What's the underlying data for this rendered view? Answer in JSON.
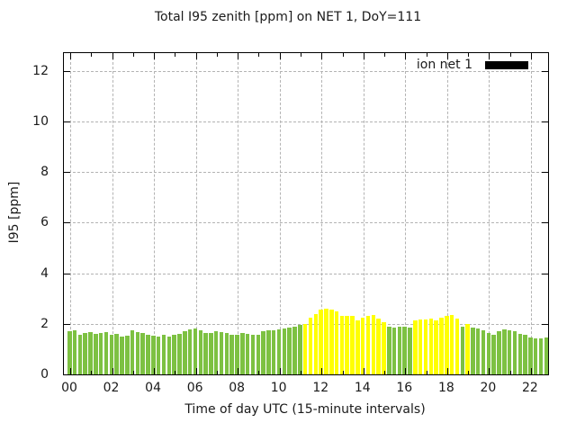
{
  "chart_data": {
    "type": "bar",
    "title": "Total I95 zenith [ppm] on NET 1, DoY=111",
    "xlabel": "Time of day UTC (15-minute intervals)",
    "ylabel": "I95 [ppm]",
    "ylim": [
      0,
      12.7
    ],
    "yticks": [
      0,
      2,
      4,
      6,
      8,
      10,
      12
    ],
    "xtick_labels": [
      "00",
      "02",
      "04",
      "06",
      "08",
      "10",
      "12",
      "14",
      "16",
      "18",
      "20",
      "22"
    ],
    "grid": true,
    "legend_position": "top-right-inside",
    "legend": [
      {
        "name": "ion net 1",
        "swatch": "#000000"
      }
    ],
    "palette": {
      "g": "#7dc142",
      "y": "#ffff00"
    },
    "x": [
      "00:00",
      "00:15",
      "00:30",
      "00:45",
      "01:00",
      "01:15",
      "01:30",
      "01:45",
      "02:00",
      "02:15",
      "02:30",
      "02:45",
      "03:00",
      "03:15",
      "03:30",
      "03:45",
      "04:00",
      "04:15",
      "04:30",
      "04:45",
      "05:00",
      "05:15",
      "05:30",
      "05:45",
      "06:00",
      "06:15",
      "06:30",
      "06:45",
      "07:00",
      "07:15",
      "07:30",
      "07:45",
      "08:00",
      "08:15",
      "08:30",
      "08:45",
      "09:00",
      "09:15",
      "09:30",
      "09:45",
      "10:00",
      "10:15",
      "10:30",
      "10:45",
      "11:00",
      "11:15",
      "11:30",
      "11:45",
      "12:00",
      "12:15",
      "12:30",
      "12:45",
      "13:00",
      "13:15",
      "13:30",
      "13:45",
      "14:00",
      "14:15",
      "14:30",
      "14:45",
      "15:00",
      "15:15",
      "15:30",
      "15:45",
      "16:00",
      "16:15",
      "16:30",
      "16:45",
      "17:00",
      "17:15",
      "17:30",
      "17:45",
      "18:00",
      "18:15",
      "18:30",
      "18:45",
      "19:00",
      "19:15",
      "19:30",
      "19:45",
      "20:00",
      "20:15",
      "20:30",
      "20:45",
      "21:00",
      "21:15",
      "21:30",
      "21:45",
      "22:00",
      "22:15",
      "22:30",
      "22:45"
    ],
    "values": [
      1.7,
      1.75,
      1.58,
      1.63,
      1.68,
      1.61,
      1.65,
      1.68,
      1.56,
      1.61,
      1.51,
      1.54,
      1.73,
      1.68,
      1.63,
      1.58,
      1.54,
      1.49,
      1.56,
      1.51,
      1.56,
      1.61,
      1.7,
      1.77,
      1.8,
      1.75,
      1.63,
      1.65,
      1.7,
      1.68,
      1.65,
      1.55,
      1.58,
      1.63,
      1.61,
      1.58,
      1.56,
      1.7,
      1.75,
      1.75,
      1.77,
      1.8,
      1.85,
      1.87,
      1.94,
      2.0,
      2.25,
      2.4,
      2.55,
      2.6,
      2.55,
      2.5,
      2.3,
      2.33,
      2.3,
      2.15,
      2.25,
      2.3,
      2.35,
      2.2,
      2.05,
      1.88,
      1.85,
      1.87,
      1.9,
      1.85,
      2.15,
      2.17,
      2.18,
      2.2,
      2.15,
      2.25,
      2.3,
      2.35,
      2.2,
      1.9,
      2.0,
      1.85,
      1.8,
      1.73,
      1.63,
      1.58,
      1.72,
      1.78,
      1.75,
      1.72,
      1.6,
      1.55,
      1.46,
      1.43,
      1.43,
      1.45
    ],
    "bar_colors": [
      "g",
      "g",
      "g",
      "g",
      "g",
      "g",
      "g",
      "g",
      "g",
      "g",
      "g",
      "g",
      "g",
      "g",
      "g",
      "g",
      "g",
      "g",
      "g",
      "g",
      "g",
      "g",
      "g",
      "g",
      "g",
      "g",
      "g",
      "g",
      "g",
      "g",
      "g",
      "g",
      "g",
      "g",
      "g",
      "g",
      "g",
      "g",
      "g",
      "g",
      "g",
      "g",
      "g",
      "g",
      "g",
      "y",
      "y",
      "y",
      "y",
      "y",
      "y",
      "y",
      "y",
      "y",
      "y",
      "y",
      "y",
      "y",
      "y",
      "y",
      "y",
      "g",
      "g",
      "g",
      "g",
      "g",
      "y",
      "y",
      "y",
      "y",
      "y",
      "y",
      "y",
      "y",
      "y",
      "g",
      "y",
      "g",
      "g",
      "g",
      "g",
      "g",
      "g",
      "g",
      "g",
      "g",
      "g",
      "g",
      "g",
      "g",
      "g",
      "g"
    ]
  }
}
